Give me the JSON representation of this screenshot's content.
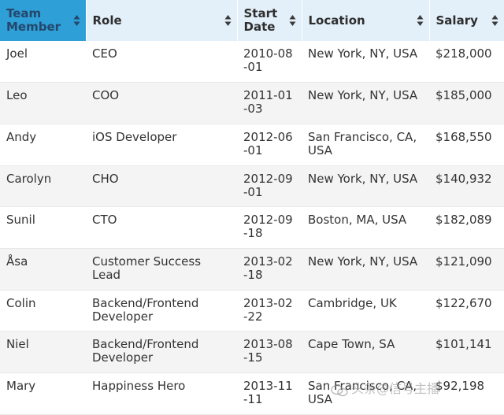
{
  "table": {
    "columns": [
      {
        "label": "Team Member",
        "sorted": true
      },
      {
        "label": "Role",
        "sorted": false
      },
      {
        "label": "Start Date",
        "sorted": false
      },
      {
        "label": "Location",
        "sorted": false
      },
      {
        "label": "Salary",
        "sorted": false
      }
    ],
    "rows": [
      {
        "name": "Joel",
        "role": "CEO",
        "start_date": "2010-08-01",
        "location": "New York, NY, USA",
        "salary": "$218,000"
      },
      {
        "name": "Leo",
        "role": "COO",
        "start_date": "2011-01-03",
        "location": "New York, NY, USA",
        "salary": "$185,000"
      },
      {
        "name": "Andy",
        "role": "iOS Developer",
        "start_date": "2012-06-01",
        "location": "San Francisco, CA, USA",
        "salary": "$168,550"
      },
      {
        "name": "Carolyn",
        "role": "CHO",
        "start_date": "2012-09-01",
        "location": "New York, NY, USA",
        "salary": "$140,932"
      },
      {
        "name": "Sunil",
        "role": "CTO",
        "start_date": "2012-09-18",
        "location": "Boston, MA, USA",
        "salary": "$182,089"
      },
      {
        "name": "Åsa",
        "role": "Customer Success Lead",
        "start_date": "2013-02-18",
        "location": "New York, NY, USA",
        "salary": "$121,090"
      },
      {
        "name": "Colin",
        "role": "Backend/Frontend Developer",
        "start_date": "2013-02-22",
        "location": "Cambridge, UK",
        "salary": "$122,670"
      },
      {
        "name": "Niel",
        "role": "Backend/Frontend Developer",
        "start_date": "2013-08-15",
        "location": "Cape Town, SA",
        "salary": "$101,141"
      },
      {
        "name": "Mary",
        "role": "Happiness Hero",
        "start_date": "2013-11-11",
        "location": "San Francisco, CA, USA",
        "salary": "$92,198"
      }
    ]
  },
  "watermark": {
    "text": "头条@信号主播"
  },
  "colors": {
    "header_bg": "#e3f0f9",
    "active_header_bg": "#2f9fd8",
    "row_alt_bg": "#f4f4f4"
  }
}
